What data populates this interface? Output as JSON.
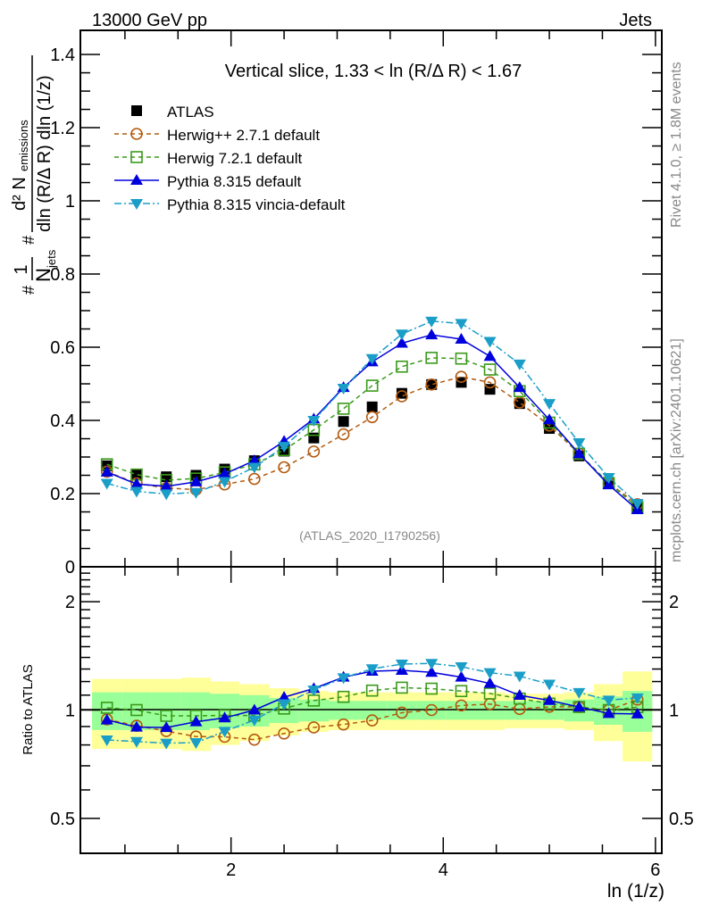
{
  "header": {
    "left_label": "13000 GeV pp",
    "right_label": "Jets"
  },
  "side_labels": {
    "rivet": "Rivet 4.1.0, ≥ 1.8M events",
    "mcplots": "mcplots.cern.ch [arXiv:2401.10621]"
  },
  "chart_data": [
    {
      "type": "line",
      "panel": "main",
      "title": "Vertical slice, 1.33 < ln (R/Δ R) < 1.67",
      "watermark": "(ATLAS_2020_I1790256)",
      "xlabel": "ln (1/z)",
      "ylabel": "#frac{1}{N_jets}#frac{d^2 N_emissions}{dln (R/Δ R) dln (1/z)}",
      "ylabel_parts": {
        "prefix_num": "1",
        "prefix_den": "N",
        "prefix_den_sub": "jets",
        "num": "d² N",
        "num_sub": "emissions",
        "den": "dln (R/Δ R) dln (1/z)"
      },
      "xlim": [
        0.58,
        6.06
      ],
      "ylim": [
        0,
        1.466
      ],
      "yticks": [
        0,
        0.2,
        0.4,
        0.6,
        0.8,
        1,
        1.2,
        1.4
      ],
      "ytick_labels": [
        "0",
        "0.2",
        "0.4",
        "0.6",
        "0.8",
        "1",
        "1.2",
        "1.4"
      ],
      "xticks": [
        2,
        4,
        6
      ],
      "xtick_labels": [
        "2",
        "4",
        "6"
      ],
      "legend_position": "top-left",
      "x": [
        0.83,
        1.11,
        1.39,
        1.67,
        1.94,
        2.22,
        2.5,
        2.78,
        3.06,
        3.33,
        3.61,
        3.89,
        4.17,
        4.44,
        4.72,
        5.0,
        5.28,
        5.56,
        5.83
      ],
      "series": [
        {
          "name": "ATLAS",
          "color": "#000000",
          "marker": "square-filled",
          "line": "none",
          "values": [
            0.276,
            0.252,
            0.246,
            0.25,
            0.267,
            0.29,
            0.316,
            0.352,
            0.397,
            0.437,
            0.474,
            0.498,
            0.504,
            0.485,
            0.446,
            0.378,
            0.303,
            0.229,
            0.16
          ]
        },
        {
          "name": "Herwig++ 2.7.1 default",
          "color": "#b35a0f",
          "marker": "circle-open",
          "line": "dashed",
          "values": [
            0.26,
            0.228,
            0.215,
            0.211,
            0.225,
            0.24,
            0.272,
            0.315,
            0.362,
            0.409,
            0.466,
            0.498,
            0.519,
            0.504,
            0.449,
            0.386,
            0.309,
            0.229,
            0.171
          ]
        },
        {
          "name": "Herwig 7.2.1 default",
          "color": "#3a9a1a",
          "marker": "square-open",
          "line": "dashed",
          "values": [
            0.28,
            0.252,
            0.237,
            0.241,
            0.258,
            0.28,
            0.319,
            0.374,
            0.432,
            0.495,
            0.547,
            0.571,
            0.569,
            0.539,
            0.48,
            0.394,
            0.309,
            0.229,
            0.163
          ]
        },
        {
          "name": "Pythia 8.315 default",
          "color": "#0000dd",
          "marker": "triangle-up-filled",
          "line": "solid",
          "values": [
            0.259,
            0.226,
            0.22,
            0.232,
            0.254,
            0.29,
            0.343,
            0.404,
            0.49,
            0.56,
            0.611,
            0.634,
            0.622,
            0.575,
            0.49,
            0.402,
            0.309,
            0.224,
            0.156
          ]
        },
        {
          "name": "Pythia 8.315 vincia-default",
          "color": "#1a9ec8",
          "marker": "triangle-down-filled",
          "line": "dashdot",
          "values": [
            0.228,
            0.206,
            0.199,
            0.203,
            0.233,
            0.272,
            0.329,
            0.4,
            0.488,
            0.569,
            0.636,
            0.671,
            0.665,
            0.616,
            0.554,
            0.446,
            0.339,
            0.244,
            0.173
          ]
        }
      ]
    },
    {
      "type": "line",
      "panel": "ratio",
      "ylabel": "Ratio to ATLAS",
      "xlabel": "ln (1/z)",
      "yscale": "log",
      "ylim": [
        0.4,
        2.5
      ],
      "yticks": [
        0.5,
        1,
        2
      ],
      "ytick_labels": [
        "0.5",
        "1",
        "2"
      ],
      "xlim": [
        0.58,
        6.06
      ],
      "xticks": [
        2,
        4,
        6
      ],
      "xtick_labels": [
        "2",
        "4",
        "6"
      ],
      "bands": {
        "total_color": "#ffff99",
        "stat_color": "#99ff99",
        "total_rel_err": [
          0.22,
          0.22,
          0.22,
          0.23,
          0.2,
          0.18,
          0.15,
          0.13,
          0.12,
          0.12,
          0.12,
          0.12,
          0.12,
          0.12,
          0.11,
          0.11,
          0.12,
          0.18,
          0.28
        ],
        "stat_rel_err": [
          0.12,
          0.12,
          0.12,
          0.12,
          0.11,
          0.1,
          0.08,
          0.07,
          0.06,
          0.06,
          0.06,
          0.06,
          0.06,
          0.06,
          0.06,
          0.06,
          0.07,
          0.09,
          0.13
        ]
      }
    }
  ]
}
